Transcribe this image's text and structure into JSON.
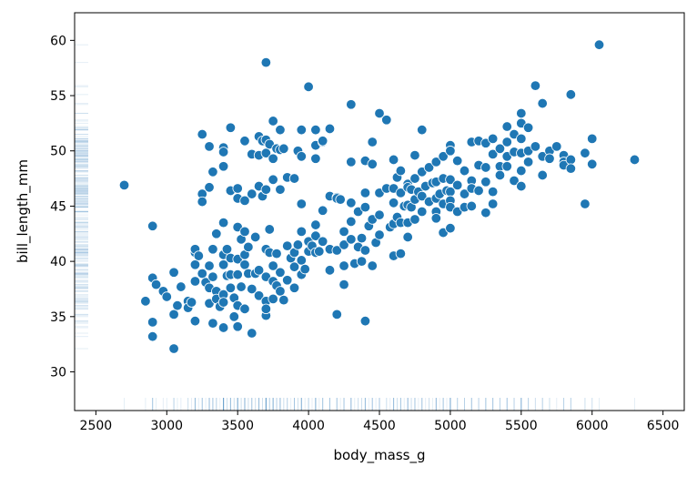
{
  "chart_data": {
    "type": "scatter",
    "title": "",
    "xlabel": "body_mass_g",
    "ylabel": "bill_length_mm",
    "xlim": [
      2350,
      6650
    ],
    "ylim": [
      26.5,
      62.5
    ],
    "xticks": [
      2500,
      3000,
      3500,
      4000,
      4500,
      5000,
      5500,
      6000,
      6500
    ],
    "yticks": [
      30,
      35,
      40,
      45,
      50,
      55,
      60
    ],
    "grid": false,
    "rug": true,
    "marker_color": "#1f77b4",
    "points": [
      [
        2700,
        46.9
      ],
      [
        2850,
        36.4
      ],
      [
        2900,
        43.2
      ],
      [
        2900,
        38.5
      ],
      [
        2900,
        34.5
      ],
      [
        2900,
        33.2
      ],
      [
        2925,
        37.9
      ],
      [
        2975,
        37.3
      ],
      [
        3000,
        36.8
      ],
      [
        3050,
        32.1
      ],
      [
        3050,
        39.0
      ],
      [
        3050,
        35.2
      ],
      [
        3075,
        36.0
      ],
      [
        3100,
        37.7
      ],
      [
        3150,
        36.4
      ],
      [
        3150,
        35.8
      ],
      [
        3175,
        36.3
      ],
      [
        3200,
        38.2
      ],
      [
        3200,
        40.8
      ],
      [
        3200,
        39.7
      ],
      [
        3200,
        41.1
      ],
      [
        3200,
        34.6
      ],
      [
        3225,
        40.5
      ],
      [
        3250,
        51.5
      ],
      [
        3250,
        46.1
      ],
      [
        3250,
        45.4
      ],
      [
        3250,
        38.9
      ],
      [
        3275,
        38.1
      ],
      [
        3300,
        50.4
      ],
      [
        3300,
        46.7
      ],
      [
        3300,
        39.6
      ],
      [
        3300,
        37.6
      ],
      [
        3300,
        36.2
      ],
      [
        3325,
        48.1
      ],
      [
        3325,
        41.1
      ],
      [
        3325,
        38.6
      ],
      [
        3325,
        34.4
      ],
      [
        3350,
        42.5
      ],
      [
        3350,
        37.3
      ],
      [
        3350,
        36.6
      ],
      [
        3375,
        35.9
      ],
      [
        3400,
        50.3
      ],
      [
        3400,
        49.9
      ],
      [
        3400,
        48.6
      ],
      [
        3400,
        43.5
      ],
      [
        3400,
        40.6
      ],
      [
        3400,
        39.7
      ],
      [
        3400,
        37.0
      ],
      [
        3400,
        36.3
      ],
      [
        3400,
        34.0
      ],
      [
        3425,
        41.1
      ],
      [
        3425,
        38.7
      ],
      [
        3450,
        52.1
      ],
      [
        3450,
        46.4
      ],
      [
        3450,
        40.3
      ],
      [
        3450,
        38.8
      ],
      [
        3450,
        37.6
      ],
      [
        3475,
        36.7
      ],
      [
        3475,
        35.0
      ],
      [
        3500,
        46.6
      ],
      [
        3500,
        45.7
      ],
      [
        3500,
        43.1
      ],
      [
        3500,
        40.2
      ],
      [
        3500,
        38.8
      ],
      [
        3500,
        36.0
      ],
      [
        3500,
        34.1
      ],
      [
        3525,
        42.0
      ],
      [
        3525,
        37.7
      ],
      [
        3550,
        50.9
      ],
      [
        3550,
        45.5
      ],
      [
        3550,
        42.7
      ],
      [
        3550,
        40.6
      ],
      [
        3550,
        39.7
      ],
      [
        3550,
        35.7
      ],
      [
        3575,
        41.3
      ],
      [
        3575,
        38.9
      ],
      [
        3600,
        49.7
      ],
      [
        3600,
        46.1
      ],
      [
        3600,
        37.5
      ],
      [
        3600,
        33.5
      ],
      [
        3625,
        42.2
      ],
      [
        3625,
        38.9
      ],
      [
        3650,
        51.3
      ],
      [
        3650,
        49.6
      ],
      [
        3650,
        46.8
      ],
      [
        3650,
        39.2
      ],
      [
        3650,
        36.9
      ],
      [
        3675,
        50.9
      ],
      [
        3675,
        45.9
      ],
      [
        3700,
        58.0
      ],
      [
        3700,
        51.0
      ],
      [
        3700,
        49.8
      ],
      [
        3700,
        46.5
      ],
      [
        3700,
        41.1
      ],
      [
        3700,
        38.6
      ],
      [
        3700,
        36.4
      ],
      [
        3700,
        35.1
      ],
      [
        3700,
        35.7
      ],
      [
        3725,
        50.6
      ],
      [
        3725,
        42.9
      ],
      [
        3725,
        40.8
      ],
      [
        3750,
        52.7
      ],
      [
        3750,
        49.3
      ],
      [
        3750,
        47.4
      ],
      [
        3750,
        39.6
      ],
      [
        3750,
        38.2
      ],
      [
        3750,
        36.6
      ],
      [
        3775,
        50.2
      ],
      [
        3775,
        40.7
      ],
      [
        3775,
        37.8
      ],
      [
        3800,
        51.9
      ],
      [
        3800,
        50.1
      ],
      [
        3800,
        46.5
      ],
      [
        3800,
        39.0
      ],
      [
        3800,
        37.3
      ],
      [
        3825,
        50.2
      ],
      [
        3825,
        36.5
      ],
      [
        3850,
        47.6
      ],
      [
        3850,
        41.4
      ],
      [
        3850,
        38.3
      ],
      [
        3875,
        40.3
      ],
      [
        3900,
        47.5
      ],
      [
        3900,
        40.8
      ],
      [
        3900,
        39.5
      ],
      [
        3900,
        37.6
      ],
      [
        3925,
        50.0
      ],
      [
        3925,
        41.5
      ],
      [
        3950,
        51.9
      ],
      [
        3950,
        49.5
      ],
      [
        3950,
        45.2
      ],
      [
        3950,
        42.7
      ],
      [
        3950,
        40.1
      ],
      [
        3950,
        38.8
      ],
      [
        3975,
        39.3
      ],
      [
        4000,
        55.8
      ],
      [
        4000,
        41.8
      ],
      [
        4000,
        40.9
      ],
      [
        4025,
        41.4
      ],
      [
        4050,
        51.9
      ],
      [
        4050,
        50.5
      ],
      [
        4050,
        49.3
      ],
      [
        4050,
        43.3
      ],
      [
        4050,
        42.3
      ],
      [
        4050,
        40.8
      ],
      [
        4075,
        40.9
      ],
      [
        4100,
        50.8
      ],
      [
        4100,
        50.9
      ],
      [
        4100,
        44.6
      ],
      [
        4100,
        41.8
      ],
      [
        4150,
        52.0
      ],
      [
        4150,
        45.9
      ],
      [
        4150,
        41.1
      ],
      [
        4150,
        39.2
      ],
      [
        4200,
        45.8
      ],
      [
        4200,
        45.7
      ],
      [
        4200,
        41.0
      ],
      [
        4200,
        35.2
      ],
      [
        4225,
        45.6
      ],
      [
        4250,
        42.7
      ],
      [
        4250,
        41.5
      ],
      [
        4250,
        39.6
      ],
      [
        4250,
        37.9
      ],
      [
        4300,
        54.2
      ],
      [
        4300,
        49.0
      ],
      [
        4300,
        45.3
      ],
      [
        4300,
        42.0
      ],
      [
        4300,
        43.6
      ],
      [
        4325,
        39.8
      ],
      [
        4350,
        44.5
      ],
      [
        4350,
        41.3
      ],
      [
        4375,
        42.1
      ],
      [
        4375,
        40.0
      ],
      [
        4400,
        49.1
      ],
      [
        4400,
        46.2
      ],
      [
        4400,
        44.9
      ],
      [
        4400,
        41.0
      ],
      [
        4400,
        34.6
      ],
      [
        4425,
        43.2
      ],
      [
        4450,
        50.8
      ],
      [
        4450,
        48.8
      ],
      [
        4450,
        43.8
      ],
      [
        4450,
        39.6
      ],
      [
        4475,
        41.7
      ],
      [
        4500,
        53.4
      ],
      [
        4500,
        46.2
      ],
      [
        4500,
        44.2
      ],
      [
        4500,
        42.4
      ],
      [
        4550,
        52.8
      ],
      [
        4550,
        46.6
      ],
      [
        4575,
        43.1
      ],
      [
        4600,
        49.2
      ],
      [
        4600,
        46.6
      ],
      [
        4600,
        45.3
      ],
      [
        4600,
        43.4
      ],
      [
        4600,
        40.5
      ],
      [
        4625,
        47.6
      ],
      [
        4625,
        44.0
      ],
      [
        4650,
        48.2
      ],
      [
        4650,
        46.2
      ],
      [
        4650,
        43.5
      ],
      [
        4650,
        40.7
      ],
      [
        4675,
        45.0
      ],
      [
        4700,
        47.0
      ],
      [
        4700,
        46.7
      ],
      [
        4700,
        45.1
      ],
      [
        4700,
        43.5
      ],
      [
        4700,
        42.2
      ],
      [
        4725,
        46.5
      ],
      [
        4725,
        44.9
      ],
      [
        4750,
        49.6
      ],
      [
        4750,
        47.5
      ],
      [
        4750,
        45.6
      ],
      [
        4750,
        43.8
      ],
      [
        4775,
        46.3
      ],
      [
        4800,
        51.9
      ],
      [
        4800,
        48.1
      ],
      [
        4800,
        45.9
      ],
      [
        4800,
        44.5
      ],
      [
        4825,
        46.8
      ],
      [
        4850,
        48.5
      ],
      [
        4850,
        45.4
      ],
      [
        4875,
        47.1
      ],
      [
        4900,
        49.0
      ],
      [
        4900,
        47.2
      ],
      [
        4900,
        45.7
      ],
      [
        4900,
        44.5
      ],
      [
        4900,
        43.9
      ],
      [
        4925,
        46.1
      ],
      [
        4950,
        49.5
      ],
      [
        4950,
        47.5
      ],
      [
        4950,
        45.2
      ],
      [
        4950,
        42.6
      ],
      [
        4975,
        46.4
      ],
      [
        5000,
        50.5
      ],
      [
        5000,
        50.0
      ],
      [
        5000,
        47.4
      ],
      [
        5000,
        46.3
      ],
      [
        5000,
        45.5
      ],
      [
        5000,
        44.9
      ],
      [
        5000,
        43.0
      ],
      [
        5050,
        49.1
      ],
      [
        5050,
        46.9
      ],
      [
        5050,
        44.5
      ],
      [
        5100,
        48.2
      ],
      [
        5100,
        46.1
      ],
      [
        5100,
        44.9
      ],
      [
        5150,
        50.8
      ],
      [
        5150,
        47.3
      ],
      [
        5150,
        46.6
      ],
      [
        5150,
        45.0
      ],
      [
        5200,
        50.9
      ],
      [
        5200,
        48.7
      ],
      [
        5200,
        46.4
      ],
      [
        5250,
        50.7
      ],
      [
        5250,
        48.5
      ],
      [
        5250,
        47.2
      ],
      [
        5250,
        44.4
      ],
      [
        5300,
        51.1
      ],
      [
        5300,
        49.7
      ],
      [
        5300,
        46.3
      ],
      [
        5300,
        45.2
      ],
      [
        5350,
        50.2
      ],
      [
        5350,
        48.6
      ],
      [
        5350,
        47.8
      ],
      [
        5400,
        52.2
      ],
      [
        5400,
        50.8
      ],
      [
        5400,
        49.5
      ],
      [
        5400,
        48.6
      ],
      [
        5450,
        51.5
      ],
      [
        5450,
        49.9
      ],
      [
        5450,
        47.3
      ],
      [
        5500,
        53.4
      ],
      [
        5500,
        52.5
      ],
      [
        5500,
        51.1
      ],
      [
        5500,
        49.8
      ],
      [
        5500,
        48.2
      ],
      [
        5500,
        46.8
      ],
      [
        5550,
        52.1
      ],
      [
        5550,
        50.0
      ],
      [
        5550,
        49.0
      ],
      [
        5600,
        55.9
      ],
      [
        5600,
        50.4
      ],
      [
        5650,
        54.3
      ],
      [
        5650,
        49.5
      ],
      [
        5650,
        47.8
      ],
      [
        5700,
        50.0
      ],
      [
        5700,
        49.3
      ],
      [
        5750,
        50.4
      ],
      [
        5800,
        49.6
      ],
      [
        5800,
        49.0
      ],
      [
        5800,
        48.7
      ],
      [
        5850,
        55.1
      ],
      [
        5850,
        49.2
      ],
      [
        5850,
        48.4
      ],
      [
        5950,
        49.8
      ],
      [
        5950,
        45.2
      ],
      [
        6000,
        51.1
      ],
      [
        6000,
        48.8
      ],
      [
        6050,
        59.6
      ],
      [
        6300,
        49.2
      ]
    ]
  }
}
